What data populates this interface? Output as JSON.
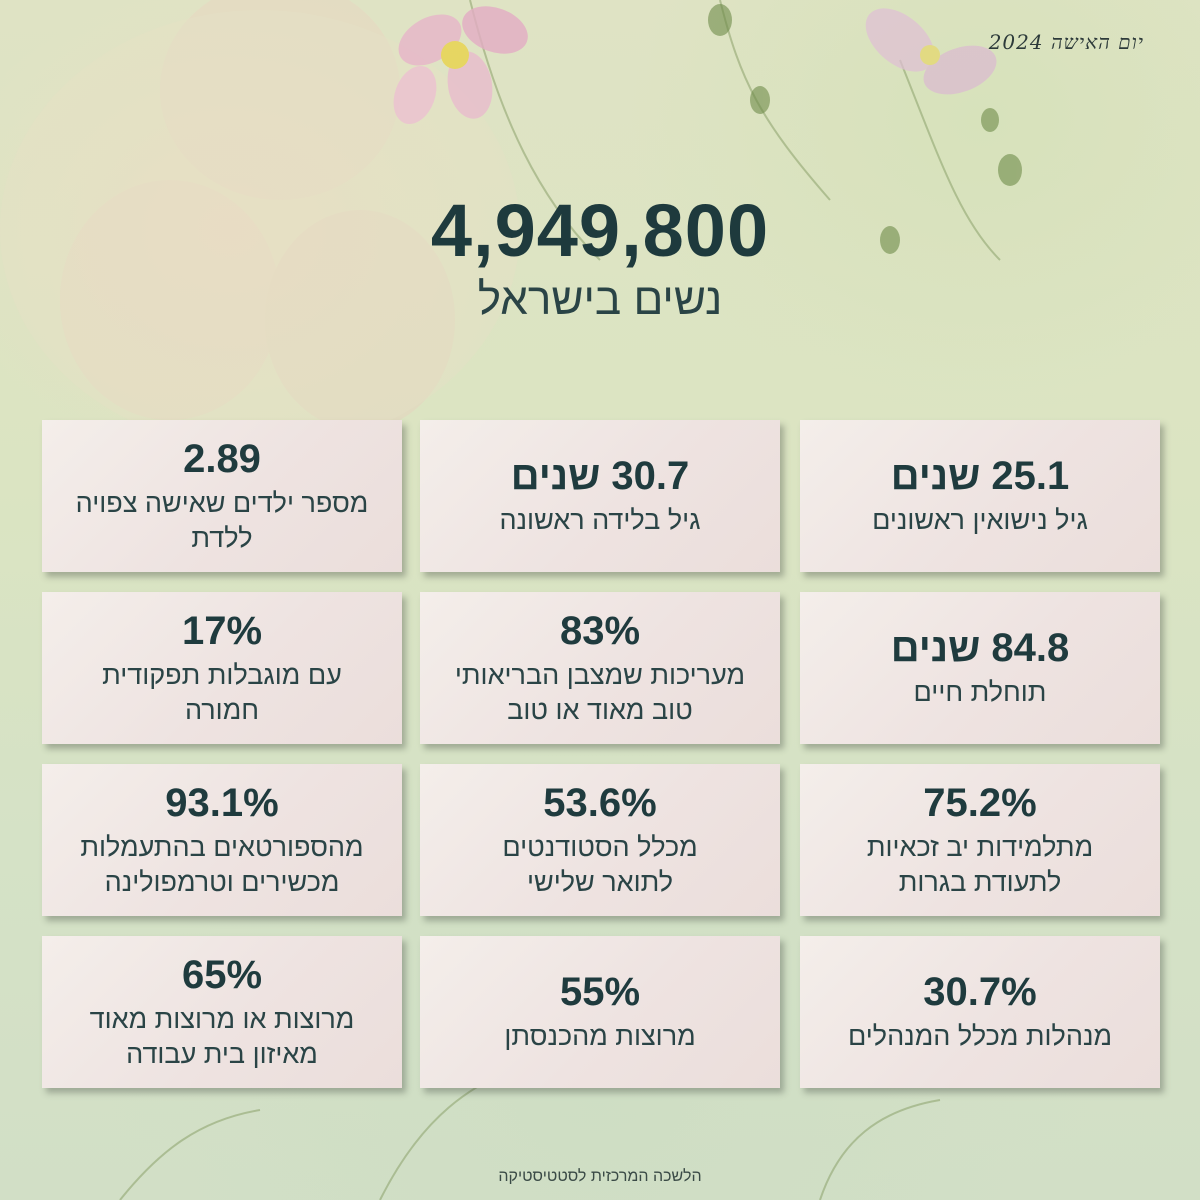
{
  "header": {
    "tag": "יום האישה 2024"
  },
  "hero": {
    "number": "4,949,800",
    "label": "נשים בישראל"
  },
  "stats": [
    {
      "value": "25.1 שנים",
      "caption": "גיל נישואין ראשונים"
    },
    {
      "value": "30.7 שנים",
      "caption": "גיל בלידה ראשונה"
    },
    {
      "value": "2.89",
      "caption": "מספר ילדים שאישה צפויה ללדת"
    },
    {
      "value": "84.8 שנים",
      "caption": "תוחלת חיים"
    },
    {
      "value": "83%",
      "caption": "מעריכות שמצבן הבריאותי טוב מאוד או טוב"
    },
    {
      "value": "17%",
      "caption": "עם מוגבלות תפקודית חמורה"
    },
    {
      "value": "75.2%",
      "caption": "מתלמידות יב זכאיות לתעודת בגרות"
    },
    {
      "value": "53.6%",
      "caption": "מכלל הסטודנטים לתואר שלישי"
    },
    {
      "value": "93.1%",
      "caption": "מהספורטאים בהתעמלות מכשירים וטרמפולינה"
    },
    {
      "value": "30.7%",
      "caption": "מנהלות מכלל המנהלים"
    },
    {
      "value": "55%",
      "caption": "מרוצות מהכנסתן"
    },
    {
      "value": "65%",
      "caption": "מרוצות או מרוצות מאוד מאיזון בית עבודה"
    }
  ],
  "footer": {
    "source": "הלשכה המרכזית לסטטיסטיקה"
  },
  "colors": {
    "accent": "#1f3b3e",
    "card": "#efe5e2",
    "background": "#d9e2c4"
  }
}
